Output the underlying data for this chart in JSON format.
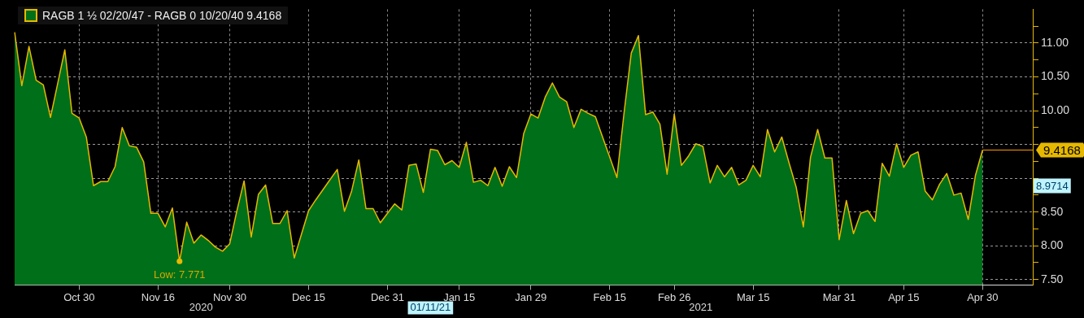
{
  "chart_data": {
    "type": "area",
    "categories": [
      null,
      null,
      null,
      null,
      null,
      null,
      null,
      null,
      null,
      "Oct 30",
      null,
      null,
      null,
      null,
      null,
      null,
      null,
      null,
      null,
      null,
      "Nov 16",
      null,
      null,
      null,
      null,
      null,
      null,
      null,
      null,
      null,
      "Nov 30",
      null,
      null,
      null,
      null,
      null,
      null,
      null,
      null,
      null,
      null,
      "Dec 15",
      null,
      null,
      null,
      null,
      null,
      null,
      null,
      null,
      null,
      null,
      "Dec 31",
      null,
      null,
      null,
      null,
      null,
      null,
      null,
      null,
      null,
      "Jan 15",
      null,
      null,
      null,
      null,
      null,
      null,
      null,
      null,
      null,
      "Jan 29",
      null,
      null,
      null,
      null,
      null,
      null,
      null,
      null,
      null,
      null,
      "Feb 15",
      null,
      null,
      null,
      null,
      null,
      null,
      null,
      null,
      "Feb 26",
      null,
      null,
      null,
      null,
      null,
      null,
      null,
      null,
      null,
      null,
      "Mar 15",
      null,
      null,
      null,
      null,
      null,
      null,
      null,
      null,
      null,
      null,
      null,
      "Mar 31",
      null,
      null,
      null,
      null,
      null,
      null,
      null,
      null,
      "Apr 15",
      null,
      null,
      null,
      null,
      null,
      null,
      null,
      null,
      null,
      null,
      "Apr 30",
      null,
      null,
      null,
      null,
      null,
      null,
      null
    ],
    "series": [
      {
        "name": "RAGB 1 ½ 02/20/47 - RAGB 0 10/20/40 9.4168",
        "color": "#006f1a",
        "values": [
          11.16,
          10.37,
          10.95,
          10.45,
          10.38,
          9.9,
          10.4,
          10.9,
          9.96,
          9.89,
          9.61,
          8.89,
          8.95,
          8.95,
          9.17,
          9.75,
          9.48,
          9.46,
          9.24,
          8.48,
          8.48,
          8.28,
          8.56,
          7.771,
          8.35,
          8.04,
          8.16,
          8.08,
          7.98,
          7.92,
          8.03,
          8.52,
          8.96,
          8.13,
          8.76,
          8.9,
          8.33,
          8.33,
          8.52,
          7.82,
          8.17,
          8.52,
          8.68,
          8.83,
          8.98,
          9.13,
          8.51,
          8.81,
          9.27,
          8.55,
          8.55,
          8.34,
          8.48,
          8.62,
          8.53,
          9.19,
          9.21,
          8.79,
          9.43,
          9.41,
          9.2,
          9.26,
          9.16,
          9.53,
          8.94,
          8.97,
          8.89,
          9.16,
          8.88,
          9.17,
          9.01,
          9.66,
          9.95,
          9.89,
          10.2,
          10.41,
          10.2,
          10.13,
          9.75,
          10.02,
          9.96,
          9.91,
          9.61,
          9.31,
          9.01,
          9.97,
          10.85,
          11.11,
          9.94,
          9.98,
          9.8,
          9.06,
          9.95,
          9.19,
          9.33,
          9.51,
          9.47,
          8.93,
          9.19,
          9.02,
          9.16,
          8.9,
          8.97,
          9.19,
          9.02,
          9.72,
          9.39,
          9.61,
          9.23,
          8.87,
          8.28,
          9.31,
          9.72,
          9.3,
          9.3,
          8.09,
          8.67,
          8.18,
          8.48,
          8.52,
          8.36,
          9.22,
          9.03,
          9.51,
          9.16,
          9.34,
          9.39,
          8.81,
          8.68,
          8.91,
          9.07,
          8.75,
          8.78,
          8.39,
          9.04,
          9.4168,
          null,
          null,
          null,
          null,
          null,
          null,
          null
        ]
      },
      {
        "type": "line",
        "color": "#e6b800",
        "values": [
          11.16,
          10.37,
          10.95,
          10.45,
          10.38,
          9.9,
          10.4,
          10.9,
          9.96,
          9.89,
          9.61,
          8.89,
          8.95,
          8.95,
          9.17,
          9.75,
          9.48,
          9.46,
          9.24,
          8.48,
          8.48,
          8.28,
          8.56,
          7.771,
          8.35,
          8.04,
          8.16,
          8.08,
          7.98,
          7.92,
          8.03,
          8.52,
          8.96,
          8.13,
          8.76,
          8.9,
          8.33,
          8.33,
          8.52,
          7.82,
          8.17,
          8.52,
          8.68,
          8.83,
          8.98,
          9.13,
          8.51,
          8.81,
          9.27,
          8.55,
          8.55,
          8.34,
          8.48,
          8.62,
          8.53,
          9.19,
          9.21,
          8.79,
          9.43,
          9.41,
          9.2,
          9.26,
          9.16,
          9.53,
          8.94,
          8.97,
          8.89,
          9.16,
          8.88,
          9.17,
          9.01,
          9.66,
          9.95,
          9.89,
          10.2,
          10.41,
          10.2,
          10.13,
          9.75,
          10.02,
          9.96,
          9.91,
          9.61,
          9.31,
          9.01,
          9.97,
          10.85,
          11.11,
          9.94,
          9.98,
          9.8,
          9.06,
          9.95,
          9.19,
          9.33,
          9.51,
          9.47,
          8.93,
          9.19,
          9.02,
          9.16,
          8.9,
          8.97,
          9.19,
          9.02,
          9.72,
          9.39,
          9.61,
          9.23,
          8.87,
          8.28,
          9.31,
          9.72,
          9.3,
          9.3,
          8.09,
          8.67,
          8.18,
          8.48,
          8.52,
          8.36,
          9.22,
          9.03,
          9.51,
          9.16,
          9.34,
          9.39,
          8.81,
          8.68,
          8.91,
          9.07,
          8.75,
          8.78,
          8.39,
          9.04,
          9.4168,
          null,
          null,
          null,
          null,
          null,
          null,
          null
        ]
      }
    ],
    "ylim": [
      7.42,
      11.5
    ],
    "yticks": [
      {
        "value": 7.5,
        "label": "7.50"
      },
      {
        "value": 7.75,
        "label": null
      },
      {
        "value": 8,
        "label": "8.00"
      },
      {
        "value": 8.25,
        "label": null
      },
      {
        "value": 8.5,
        "label": "8.50"
      },
      {
        "value": 8.75,
        "label": null
      },
      {
        "value": 9,
        "label": null
      },
      {
        "value": 9.25,
        "label": null
      },
      {
        "value": 9.5,
        "label": null
      },
      {
        "value": 9.75,
        "label": null
      },
      {
        "value": 10,
        "label": "10.00"
      },
      {
        "value": 10.25,
        "label": null
      },
      {
        "value": 10.5,
        "label": "10.50"
      },
      {
        "value": 10.75,
        "label": null
      },
      {
        "value": 11,
        "label": "11.00"
      },
      {
        "value": 11.25,
        "label": null
      }
    ],
    "grid": true,
    "legend": "top left",
    "marker": "none",
    "ref_lines": [
      {
        "axis": "y",
        "value": 9.4168,
        "label": "9.4168",
        "color": "#ff9900"
      }
    ],
    "annotations": [
      {
        "text": "Low: 7.771",
        "y": 7.771
      },
      "2020",
      "01/11/21",
      "2021",
      "8.9714"
    ]
  }
}
